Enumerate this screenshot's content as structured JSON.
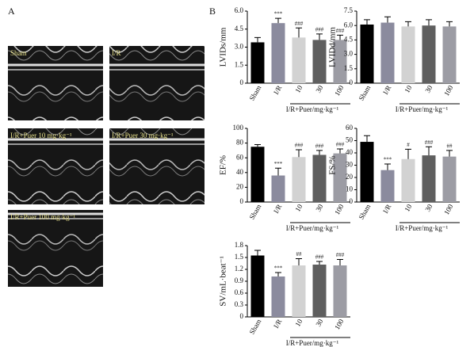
{
  "panel_labels": [
    "A",
    "B"
  ],
  "images": [
    "Sham",
    "I/R",
    "I/R+Puer 10 mg·kg⁻¹",
    "I/R+Puer 30 mg·kg⁻¹",
    "I/R+Puer 100 mg·kg⁻¹"
  ],
  "chart_data": [
    {
      "type": "bar",
      "ylabel": "LVIDs/mm",
      "categories": [
        "Sham",
        "I/R",
        "10",
        "30",
        "100"
      ],
      "group_label": "I/R+Puer/mg·kg⁻¹",
      "values": [
        3.4,
        5.0,
        3.8,
        3.6,
        3.6
      ],
      "errors": [
        0.4,
        0.4,
        0.8,
        0.5,
        0.4
      ],
      "annotations": [
        null,
        "***",
        "###",
        "###",
        "###"
      ],
      "colors": [
        "#000000",
        "#8b8b9e",
        "#d2d2d2",
        "#5f5f5f",
        "#9c9ca4"
      ],
      "ylim": [
        0,
        6
      ],
      "yticks": [
        0,
        1.5,
        {
          "value": 3,
          "label": "3.0"
        },
        4.5,
        {
          "value": 6,
          "label": "6.0"
        }
      ]
    },
    {
      "type": "bar",
      "ylabel": "LVIDd/mm",
      "categories": [
        "Sham",
        "I/R",
        "10",
        "30",
        "100"
      ],
      "group_label": "I/R+Puer/mg·kg⁻¹",
      "values": [
        6.1,
        6.3,
        5.9,
        6.0,
        5.9
      ],
      "errors": [
        0.5,
        0.6,
        0.5,
        0.6,
        0.5
      ],
      "annotations": [
        null,
        null,
        null,
        null,
        null
      ],
      "colors": [
        "#000000",
        "#8b8b9e",
        "#d2d2d2",
        "#5f5f5f",
        "#9c9ca4"
      ],
      "ylim": [
        0,
        7.5
      ],
      "yticks": [
        0,
        1.5,
        {
          "value": 3,
          "label": "3.0"
        },
        4.5,
        {
          "value": 6,
          "label": "6.0"
        },
        7.5
      ]
    },
    {
      "type": "bar",
      "ylabel": "EF/%",
      "categories": [
        "Sham",
        "I/R",
        "10",
        "30",
        "100"
      ],
      "group_label": "I/R+Puer/mg·kg⁻¹",
      "values": [
        75,
        36,
        61,
        64,
        66
      ],
      "errors": [
        3,
        10,
        10,
        6,
        6
      ],
      "annotations": [
        null,
        "***",
        "###",
        "###",
        "###"
      ],
      "colors": [
        "#000000",
        "#8b8b9e",
        "#d2d2d2",
        "#5f5f5f",
        "#9c9ca4"
      ],
      "ylim": [
        0,
        100
      ],
      "yticks": [
        0,
        20,
        40,
        60,
        80,
        100
      ]
    },
    {
      "type": "bar",
      "ylabel": "FS/%",
      "categories": [
        "Sham",
        "I/R",
        "10",
        "30",
        "100"
      ],
      "group_label": "I/R+Puer/mg·kg⁻¹",
      "values": [
        49,
        26,
        35,
        38,
        37
      ],
      "errors": [
        5,
        5,
        8,
        7,
        5
      ],
      "annotations": [
        null,
        "***",
        "#",
        "###",
        "##"
      ],
      "colors": [
        "#000000",
        "#8b8b9e",
        "#d2d2d2",
        "#5f5f5f",
        "#9c9ca4"
      ],
      "ylim": [
        0,
        60
      ],
      "yticks": [
        0,
        10,
        20,
        30,
        40,
        50,
        60
      ]
    },
    {
      "type": "bar",
      "ylabel": "SV/mL·beat⁻¹",
      "categories": [
        "Sham",
        "I/R",
        "10",
        "30",
        "100"
      ],
      "group_label": "I/R+Puer/mg·kg⁻¹",
      "values": [
        1.55,
        1.02,
        1.3,
        1.32,
        1.3
      ],
      "errors": [
        0.13,
        0.1,
        0.17,
        0.08,
        0.15
      ],
      "annotations": [
        null,
        "***",
        "##",
        "###",
        "###"
      ],
      "colors": [
        "#000000",
        "#8b8b9e",
        "#d2d2d2",
        "#5f5f5f",
        "#9c9ca4"
      ],
      "ylim": [
        0,
        1.8
      ],
      "yticks": [
        0,
        0.3,
        0.6,
        0.9,
        1.2,
        1.5,
        1.8
      ]
    }
  ]
}
